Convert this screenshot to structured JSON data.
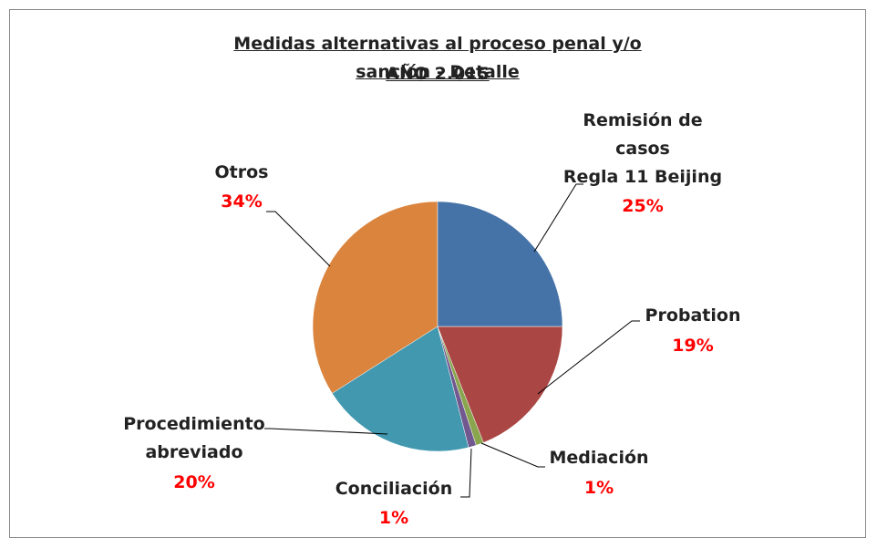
{
  "chart_data": {
    "type": "pie",
    "title": "Medidas alternativas al proceso penal y/o sanción - Detalle",
    "subtitle": "AÑO 2.015",
    "categories": [
      "Remisión de\ncasos\nRegla 11 Beijing",
      "Probation",
      "Mediación",
      "Conciliación",
      "Procedimiento\nabreviado",
      "Otros"
    ],
    "values": [
      25,
      19,
      1,
      1,
      20,
      34
    ],
    "value_labels": [
      "25%",
      "19%",
      "1%",
      "1%",
      "20%",
      "34%"
    ],
    "colors": [
      "#4572A7",
      "#AA4643",
      "#89A54E",
      "#71588F",
      "#4198AF",
      "#DB843D"
    ]
  }
}
